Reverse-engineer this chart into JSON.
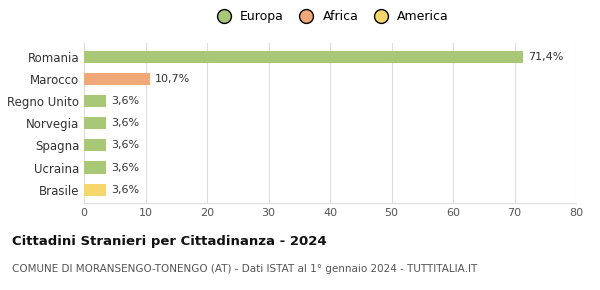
{
  "categories": [
    "Brasile",
    "Ucraina",
    "Spagna",
    "Norvegia",
    "Regno Unito",
    "Marocco",
    "Romania"
  ],
  "values": [
    3.6,
    3.6,
    3.6,
    3.6,
    3.6,
    10.7,
    71.4
  ],
  "labels": [
    "3,6%",
    "3,6%",
    "3,6%",
    "3,6%",
    "3,6%",
    "10,7%",
    "71,4%"
  ],
  "colors": [
    "#f5d76e",
    "#a8c878",
    "#a8c878",
    "#a8c878",
    "#a8c878",
    "#f0a878",
    "#a8c878"
  ],
  "legend_labels": [
    "Europa",
    "Africa",
    "America"
  ],
  "legend_colors": [
    "#a8c878",
    "#f0a878",
    "#f5d76e"
  ],
  "title": "Cittadini Stranieri per Cittadinanza - 2024",
  "subtitle": "COMUNE DI MORANSENGO-TONENGO (AT) - Dati ISTAT al 1° gennaio 2024 - TUTTITALIA.IT",
  "xlim": [
    0,
    80
  ],
  "xticks": [
    0,
    10,
    20,
    30,
    40,
    50,
    60,
    70,
    80
  ],
  "background_color": "#ffffff",
  "grid_color": "#dddddd",
  "bar_height": 0.55
}
